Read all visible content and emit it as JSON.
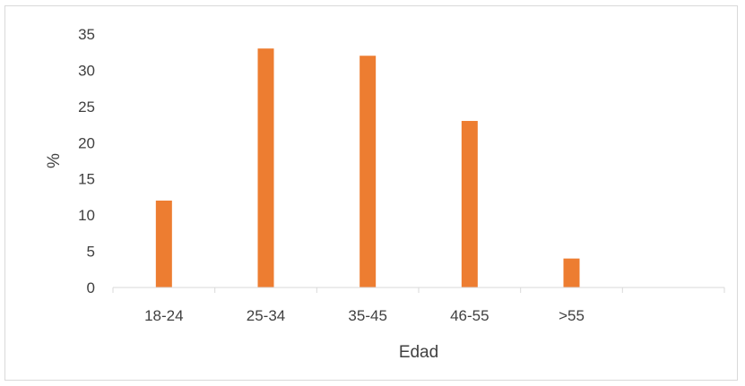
{
  "chart_data": {
    "type": "bar",
    "title": "",
    "xlabel": "Edad",
    "ylabel": "%",
    "categories": [
      "18-24",
      "25-34",
      "35-45",
      "46-55",
      ">55",
      ""
    ],
    "values": [
      12,
      33,
      32,
      23,
      4,
      null
    ],
    "ylim": [
      0,
      35
    ],
    "yticks": [
      0,
      5,
      10,
      15,
      20,
      25,
      30,
      35
    ],
    "grid": false,
    "legend": "none",
    "bar_color": "#ED7D31",
    "axis_color": "#d9d9d9",
    "text_color": "#404040"
  }
}
